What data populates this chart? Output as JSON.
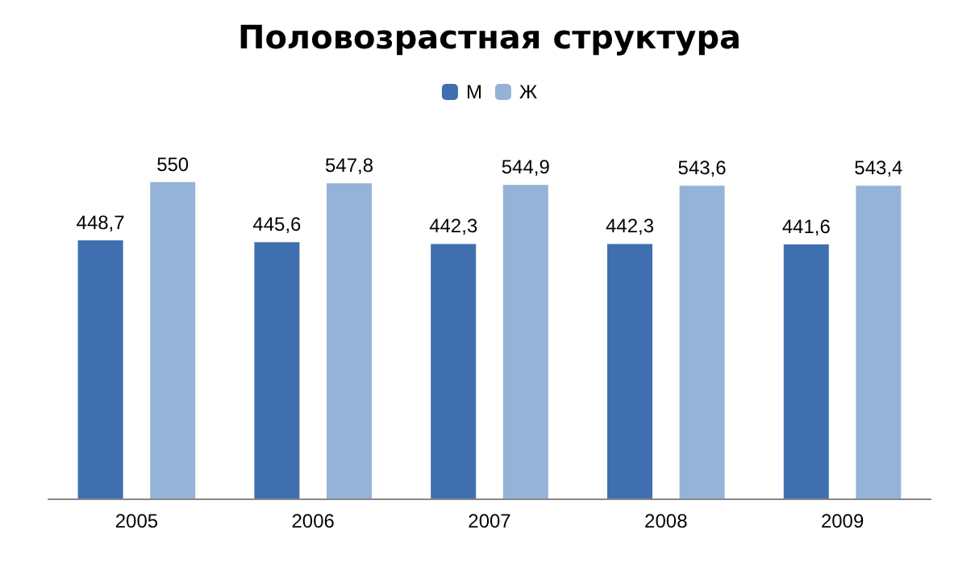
{
  "chart_data": {
    "type": "bar",
    "title": "Половозрастная структура",
    "categories": [
      "2005",
      "2006",
      "2007",
      "2008",
      "2009"
    ],
    "series": [
      {
        "name": "М",
        "color": "#3f6fae",
        "values": [
          448.7,
          445.6,
          442.3,
          442.3,
          441.6
        ],
        "value_labels": [
          "448,7",
          "445,6",
          "442,3",
          "442,3",
          "441,6"
        ]
      },
      {
        "name": "Ж",
        "color": "#95b3d7",
        "values": [
          550,
          547.8,
          544.9,
          543.6,
          543.4
        ],
        "value_labels": [
          "550",
          "547,8",
          "544,9",
          "543,6",
          "543,4"
        ]
      }
    ],
    "legend": "top"
  }
}
